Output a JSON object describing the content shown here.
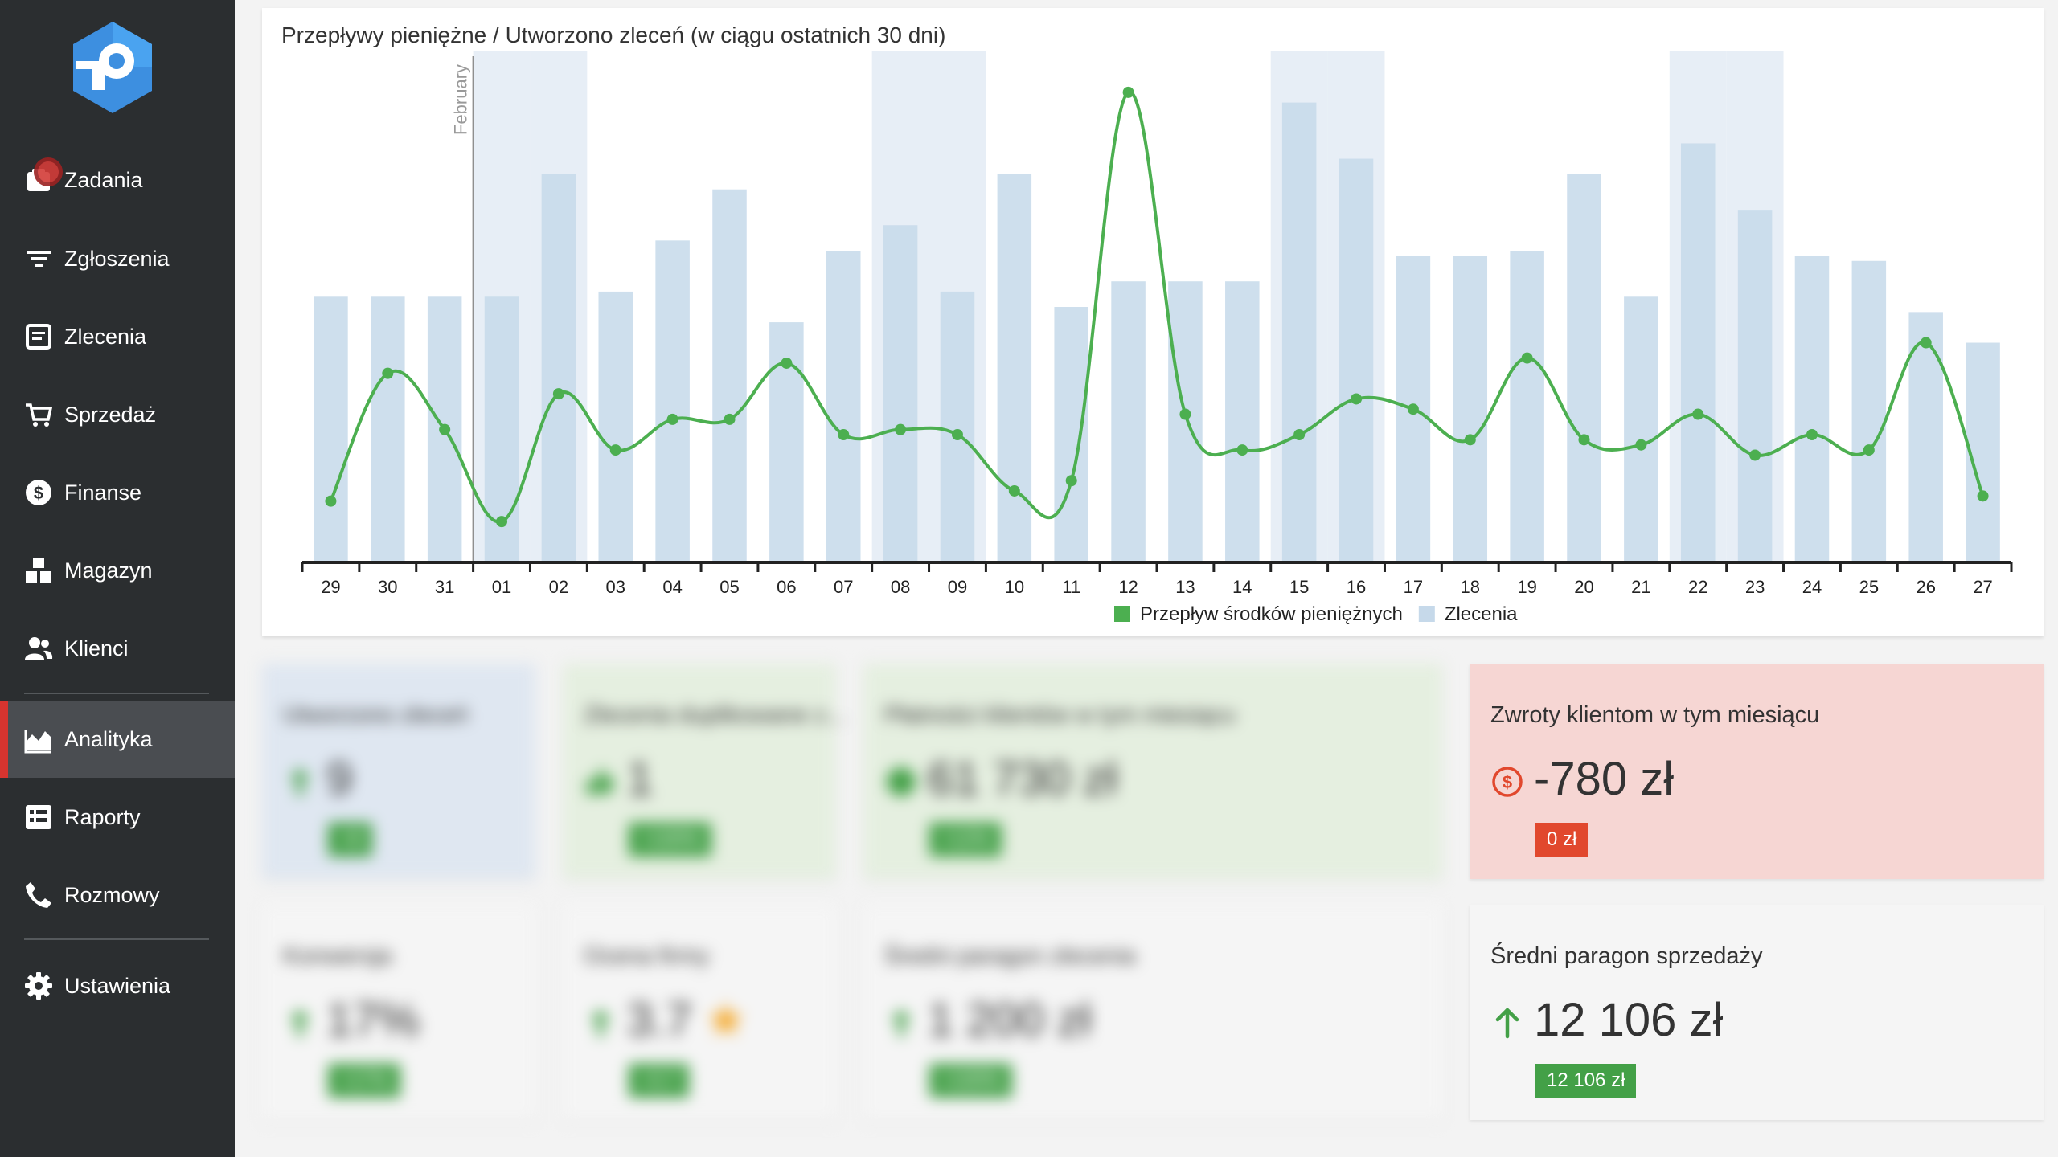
{
  "sidebar": {
    "items": [
      {
        "label": "Zadania",
        "icon": "tasks-icon"
      },
      {
        "label": "Zgłoszenia",
        "icon": "filter-icon"
      },
      {
        "label": "Zlecenia",
        "icon": "orders-icon"
      },
      {
        "label": "Sprzedaż",
        "icon": "cart-icon"
      },
      {
        "label": "Finanse",
        "icon": "dollar-icon"
      },
      {
        "label": "Magazyn",
        "icon": "warehouse-icon"
      },
      {
        "label": "Klienci",
        "icon": "users-icon"
      },
      {
        "label": "Analityka",
        "icon": "chart-area-icon",
        "active": true
      },
      {
        "label": "Raporty",
        "icon": "reports-icon"
      },
      {
        "label": "Rozmowy",
        "icon": "phone-icon"
      },
      {
        "label": "Ustawienia",
        "icon": "gear-icon"
      }
    ]
  },
  "chart_card": {
    "title": "Przepływy pieniężne / Utworzono zleceń (w ciągu ostatnich 30 dni)"
  },
  "chart_data": {
    "type": "bar+line",
    "categories": [
      "29",
      "30",
      "31",
      "01",
      "02",
      "03",
      "04",
      "05",
      "06",
      "07",
      "08",
      "09",
      "10",
      "11",
      "12",
      "13",
      "14",
      "15",
      "16",
      "17",
      "18",
      "19",
      "20",
      "21",
      "22",
      "23",
      "24",
      "25",
      "26",
      "27"
    ],
    "month_marker": {
      "label": "February",
      "before_index": 3
    },
    "weekend_indices": [
      3,
      4,
      10,
      11,
      17,
      18,
      24,
      25
    ],
    "series": [
      {
        "name": "Przepływ środków pieniężnych",
        "type": "line",
        "color": "#4caf50",
        "values": [
          0.12,
          0.37,
          0.26,
          0.08,
          0.33,
          0.22,
          0.28,
          0.28,
          0.39,
          0.25,
          0.26,
          0.25,
          0.14,
          0.16,
          0.92,
          0.29,
          0.22,
          0.25,
          0.32,
          0.3,
          0.24,
          0.4,
          0.24,
          0.23,
          0.29,
          0.21,
          0.25,
          0.22,
          0.43,
          0.13
        ]
      },
      {
        "name": "Zlecenia",
        "type": "bar",
        "color": "#c6d9ea",
        "values": [
          0.52,
          0.52,
          0.52,
          0.52,
          0.76,
          0.53,
          0.63,
          0.73,
          0.47,
          0.61,
          0.66,
          0.53,
          0.76,
          0.5,
          0.55,
          0.55,
          0.55,
          0.9,
          0.79,
          0.6,
          0.6,
          0.61,
          0.76,
          0.52,
          0.82,
          0.69,
          0.6,
          0.59,
          0.49,
          0.43
        ]
      }
    ],
    "ylim": [
      0,
      1
    ],
    "legend_position": "bottom"
  },
  "stats": {
    "created_orders": {
      "title": "Utworzono zleceń",
      "value": "9",
      "badge": "+9"
    },
    "completed_orders": {
      "title": "Zlecenia duplikowane z...",
      "value": "1",
      "badge": "+100%"
    },
    "client_payments": {
      "title": "Płatności klientów w tym miesiącu",
      "value": "61 730 zł",
      "badge": "+12%"
    },
    "client_refunds": {
      "title": "Zwroty klientom w tym miesiącu",
      "value": "-780 zł",
      "badge": "0 zł"
    },
    "conversion": {
      "title": "Konwersja",
      "value": "17%",
      "badge": "+17%"
    },
    "company_rating": {
      "title": "Ocena firmy",
      "value": "3.7",
      "badge": "+3.7"
    },
    "avg_order_receipt": {
      "title": "Średni paragon zlecenia",
      "value": "1 200 zł",
      "badge": "+100%"
    },
    "avg_sales_receipt": {
      "title": "Średni paragon sprzedaży",
      "value": "12 106 zł",
      "badge": "12 106 zł"
    }
  },
  "colors": {
    "sidebar_bg": "#2b2e30",
    "active_accent": "#d6342f",
    "line_green": "#4caf50",
    "bar_blue": "#c6d9ea",
    "card_blue": "#dfe7f1",
    "card_green": "#e5efe0",
    "card_red": "#f6d6d3",
    "card_gray": "#f5f5f5"
  }
}
